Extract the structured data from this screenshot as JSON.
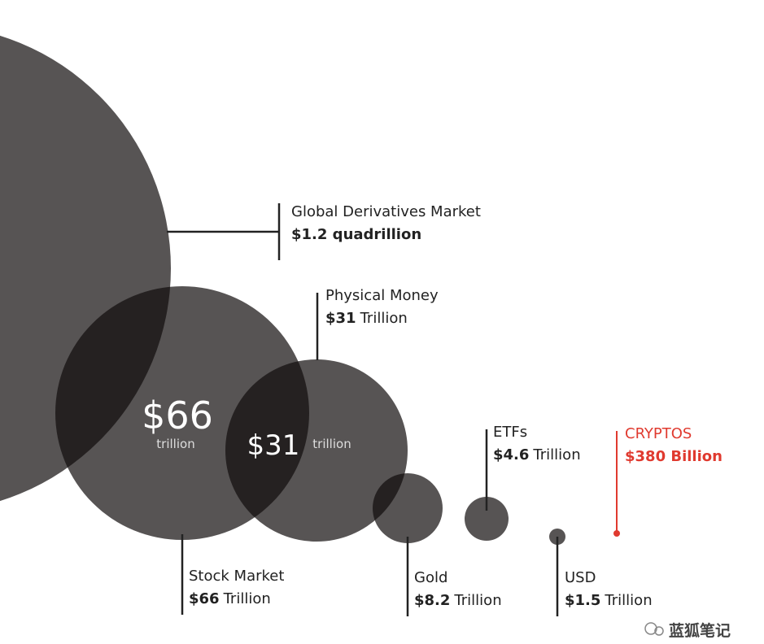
{
  "items": [
    {
      "name": "Global Derivatives Market",
      "value": "$1.2 quadrillion"
    },
    {
      "name": "Physical Money",
      "value": "$31",
      "unit": "Trillion"
    },
    {
      "name": "Stock Market",
      "value": "$66",
      "unit": "Trillion"
    },
    {
      "name": "Gold",
      "value": "$8.2",
      "unit": "Trillion"
    },
    {
      "name": "ETFs",
      "value": "$4.6",
      "unit": "Trillion"
    },
    {
      "name": "USD",
      "value": "$1.5",
      "unit": "Trillion"
    },
    {
      "name": "CRYPTOS",
      "value": "$380 Billion"
    }
  ],
  "bubble_labels": [
    {
      "value": "$66",
      "unit": "trillion"
    },
    {
      "value": "$31",
      "unit": "trillion"
    }
  ],
  "watermark": "蓝狐笔记"
}
